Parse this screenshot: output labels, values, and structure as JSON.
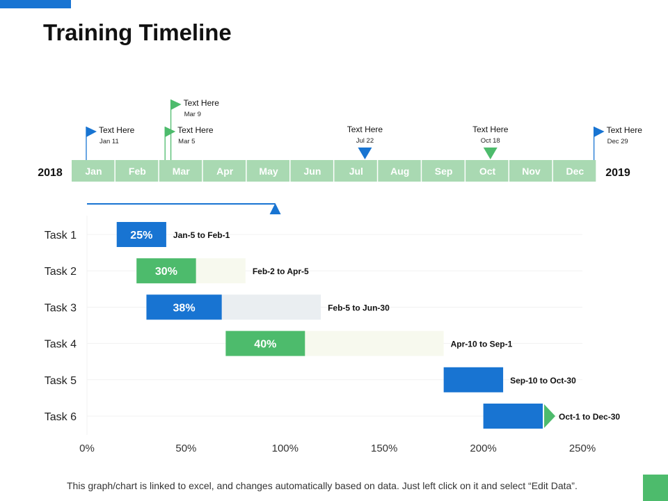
{
  "title": "Training Timeline",
  "footer": "This graph/chart is linked to excel, and changes automatically based on data. Just left click on it and select “Edit Data”.",
  "colors": {
    "blue": "#1874d2",
    "green": "#4dbb6c",
    "month_green": "#a9d9b2",
    "month_text": "#ffffff",
    "track_light": "#f7f9ee",
    "track_grey": "#eaeef1",
    "grid": "#f1f1f1"
  },
  "timeline": {
    "start_year": "2018",
    "end_year": "2019",
    "months": [
      "Jan",
      "Feb",
      "Mar",
      "Apr",
      "May",
      "Jun",
      "Jul",
      "Aug",
      "Sep",
      "Oct",
      "Nov",
      "Dec"
    ],
    "milestones": [
      {
        "label": "Text Here",
        "date": "Jan 11",
        "month": 1,
        "day": 11,
        "marker": "flag",
        "color": "blue"
      },
      {
        "label": "Text Here",
        "date": "Mar 9",
        "month": 3,
        "day": 9,
        "marker": "flag-tall",
        "color": "green"
      },
      {
        "label": "Text Here",
        "date": "Mar 5",
        "month": 3,
        "day": 5,
        "marker": "flag",
        "color": "green"
      },
      {
        "label": "Text Here",
        "date": "Jul 22",
        "month": 7,
        "day": 22,
        "marker": "triangle",
        "color": "blue"
      },
      {
        "label": "Text Here",
        "date": "Oct 18",
        "month": 10,
        "day": 18,
        "marker": "triangle",
        "color": "green"
      },
      {
        "label": "Text Here",
        "date": "Dec 29",
        "month": 12,
        "day": 29,
        "marker": "flag",
        "color": "blue"
      }
    ]
  },
  "chart_data": {
    "type": "bar",
    "orientation": "horizontal",
    "categories": [
      "Task 1",
      "Task 2",
      "Task 3",
      "Task 4",
      "Task 5",
      "Task 6"
    ],
    "xlim": [
      0,
      2.5
    ],
    "x_ticks": [
      0,
      0.5,
      1,
      1.5,
      2,
      2.5
    ],
    "x_tick_labels": [
      "0%",
      "50%",
      "100%",
      "150%",
      "200%",
      "250%"
    ],
    "progress_marker_value": 0.95,
    "tasks": [
      {
        "name": "Task 1",
        "start": 0.15,
        "done": 0.25,
        "total": 0.25,
        "done_label": "25%",
        "range_label": "Jan-5 to Feb-1",
        "color": "blue",
        "track": "none"
      },
      {
        "name": "Task 2",
        "start": 0.25,
        "done": 0.3,
        "total": 0.55,
        "done_label": "30%",
        "range_label": "Feb-2 to Apr-5",
        "color": "green",
        "track": "light"
      },
      {
        "name": "Task 3",
        "start": 0.3,
        "done": 0.38,
        "total": 0.88,
        "done_label": "38%",
        "range_label": "Feb-5 to Jun-30",
        "color": "blue",
        "track": "grey"
      },
      {
        "name": "Task 4",
        "start": 0.7,
        "done": 0.4,
        "total": 1.1,
        "done_label": "40%",
        "range_label": "Apr-10 to Sep-1",
        "color": "green",
        "track": "light"
      },
      {
        "name": "Task 5",
        "start": 1.8,
        "done": 0.3,
        "total": 0.3,
        "done_label": "",
        "range_label": "Sep-10 to Oct-30",
        "color": "blue",
        "track": "none"
      },
      {
        "name": "Task 6",
        "start": 2.0,
        "done": 0.3,
        "total": 0.3,
        "done_label": "",
        "range_label": "Oct-1 to Dec-30",
        "color": "blue",
        "track": "none",
        "end_marker": "green-triangle"
      }
    ]
  }
}
